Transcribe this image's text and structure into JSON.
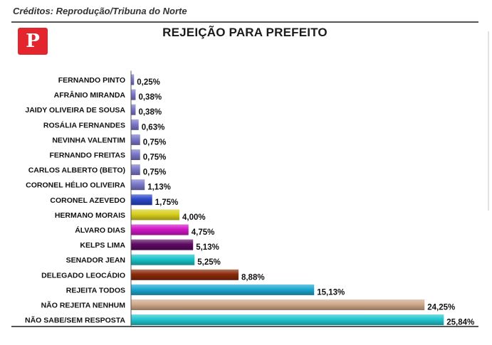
{
  "credits": "Créditos: Reprodução/Tribuna do Norte",
  "share": {
    "icon": "pinterest-icon",
    "letter": "P",
    "color": "#e3262e"
  },
  "chart_data": {
    "type": "bar",
    "orientation": "horizontal",
    "title": "REJEIÇÃO PARA PREFEITO",
    "categories": [
      "FERNANDO PINTO",
      "AFRÂNIO MIRANDA",
      "JAIDY OLIVEIRA DE SOUSA",
      "ROSÁLIA FERNANDES",
      "NEVINHA VALENTIM",
      "FERNANDO FREITAS",
      "CARLOS ALBERTO (BETO)",
      "CORONEL HÉLIO OLIVEIRA",
      "CORONEL AZEVEDO",
      "HERMANO MORAIS",
      "ÁLVARO DIAS",
      "KELPS LIMA",
      "SENADOR JEAN",
      "DELEGADO LEOCÁDIO",
      "REJEITA TODOS",
      "NÃO REJEITA NENHUM",
      "NÃO SABE/SEM RESPOSTA"
    ],
    "values": [
      0.25,
      0.38,
      0.38,
      0.63,
      0.75,
      0.75,
      0.75,
      1.13,
      1.75,
      4.0,
      4.75,
      5.13,
      5.25,
      8.88,
      15.13,
      24.25,
      25.84
    ],
    "value_labels": [
      "0,25%",
      "0,38%",
      "0,38%",
      "0,63%",
      "0,75%",
      "0,75%",
      "0,75%",
      "1,13%",
      "1,75%",
      "4,00%",
      "4,75%",
      "5,13%",
      "5,25%",
      "8,88%",
      "15,13%",
      "24,25%",
      "25,84%"
    ],
    "colors": [
      "#7b78c9",
      "#7b78c9",
      "#7b78c9",
      "#7b78c9",
      "#7b78c9",
      "#7b78c9",
      "#7b78c9",
      "#7b78c9",
      "#2a48c8",
      "#d8cf1e",
      "#d016c6",
      "#5e0a63",
      "#19c2c7",
      "#8a2a0a",
      "#1ca7d1",
      "#cfa988",
      "#22c7cf"
    ],
    "xlim": [
      0,
      26
    ],
    "grid": false,
    "legend": "none"
  }
}
